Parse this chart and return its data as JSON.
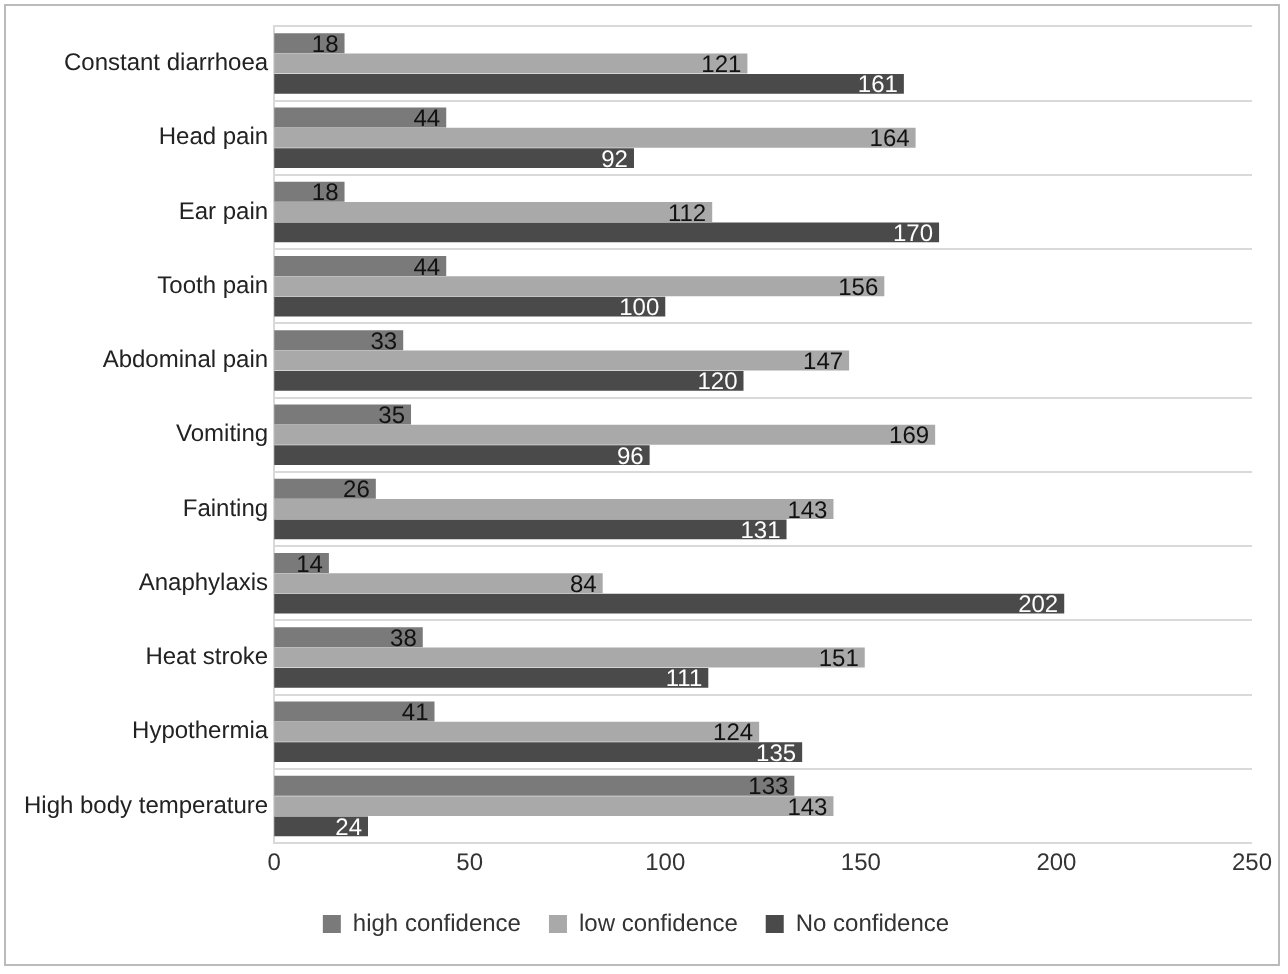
{
  "chart_data": {
    "type": "bar",
    "orientation": "horizontal",
    "categories": [
      "Constant diarrhoea",
      "Head pain",
      "Ear pain",
      "Tooth pain",
      "Abdominal pain",
      "Vomiting",
      "Fainting",
      "Anaphylaxis",
      "Heat stroke",
      "Hypothermia",
      "High body temperature"
    ],
    "series": [
      {
        "name": "high confidence",
        "color": "#7a7a7a",
        "values": [
          18,
          44,
          18,
          44,
          33,
          35,
          26,
          14,
          38,
          41,
          133
        ]
      },
      {
        "name": "low confidence",
        "color": "#a9a9a9",
        "values": [
          121,
          164,
          112,
          156,
          147,
          169,
          143,
          84,
          151,
          124,
          143
        ]
      },
      {
        "name": "No confidence",
        "color": "#4a4a4a",
        "values": [
          161,
          92,
          170,
          100,
          120,
          96,
          131,
          202,
          111,
          135,
          24
        ]
      }
    ],
    "xlim": [
      0,
      250
    ],
    "xticks": [
      0,
      50,
      100,
      150,
      200,
      250
    ],
    "grid": "y",
    "legend": "bottom",
    "data_labels": true
  }
}
